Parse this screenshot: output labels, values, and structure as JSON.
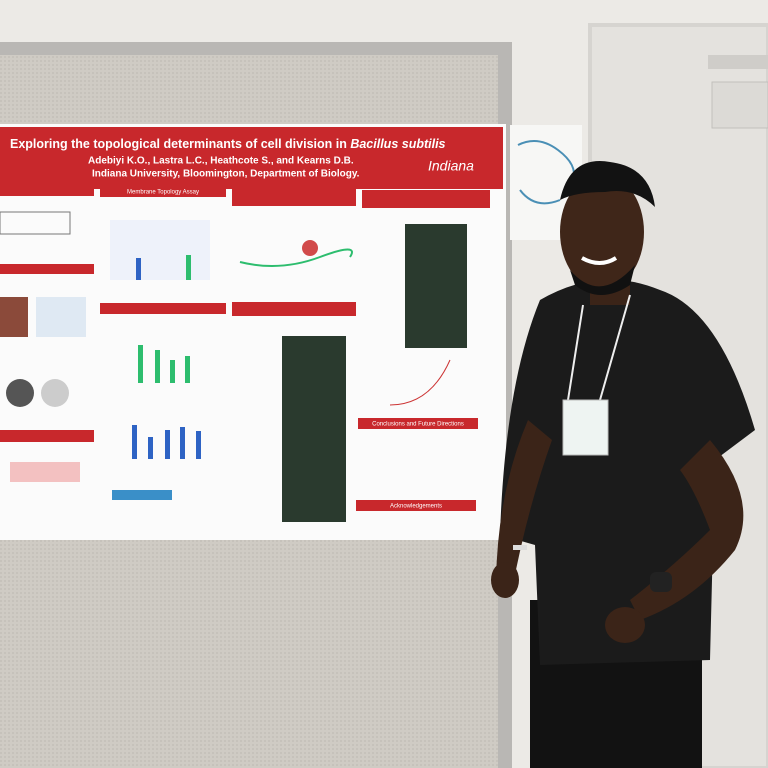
{
  "poster": {
    "title": "Exploring the topological determinants of cell division in",
    "title_species": "Bacillus subtilis",
    "authors": "Adebiyi K.O., Lastra L.C., Heathcote S., and Kearns D.B.",
    "affiliation": "Indiana University, Bloomington, Department of Biology.",
    "logo": "Indiana",
    "sections": [
      "Membrane Topology Assay",
      "Conclusions and Future Directions",
      "Acknowledgements"
    ]
  }
}
